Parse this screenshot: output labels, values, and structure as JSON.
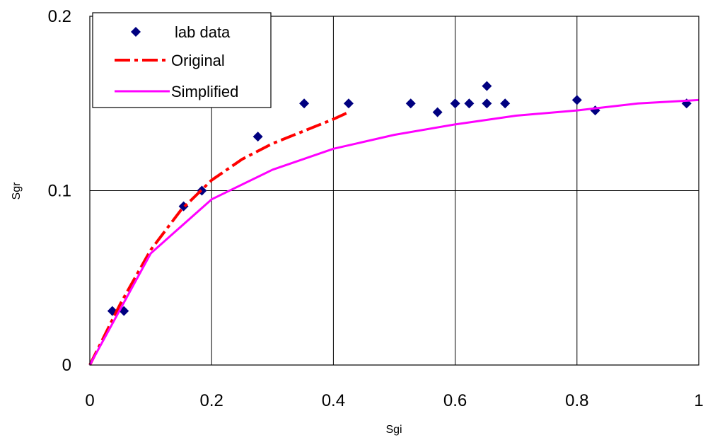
{
  "chart_data": {
    "type": "scatter",
    "title": "",
    "xlabel": "Sgi",
    "ylabel": "Sgr",
    "xlim": [
      0,
      1
    ],
    "ylim": [
      0,
      0.2
    ],
    "x_ticks": [
      "0",
      "0.2",
      "0.4",
      "0.6",
      "0.8",
      "1"
    ],
    "y_ticks": [
      "0",
      "0.1",
      "0.2"
    ],
    "grid": true,
    "legend_position": "top-left",
    "series": [
      {
        "name": "lab data",
        "kind": "markers",
        "marker": "diamond",
        "color": "#000080",
        "points": [
          [
            0.037,
            0.031
          ],
          [
            0.056,
            0.031
          ],
          [
            0.154,
            0.091
          ],
          [
            0.184,
            0.1
          ],
          [
            0.276,
            0.131
          ],
          [
            0.352,
            0.15
          ],
          [
            0.425,
            0.15
          ],
          [
            0.527,
            0.15
          ],
          [
            0.571,
            0.145
          ],
          [
            0.6,
            0.15
          ],
          [
            0.623,
            0.15
          ],
          [
            0.652,
            0.16
          ],
          [
            0.652,
            0.15
          ],
          [
            0.682,
            0.15
          ],
          [
            0.8,
            0.152
          ],
          [
            0.83,
            0.146
          ],
          [
            0.98,
            0.15
          ]
        ]
      },
      {
        "name": "Original",
        "kind": "line",
        "dash": "dash-dot",
        "color": "#ff0000",
        "points": [
          [
            0,
            0
          ],
          [
            0.05,
            0.035
          ],
          [
            0.1,
            0.066
          ],
          [
            0.15,
            0.089
          ],
          [
            0.2,
            0.106
          ],
          [
            0.25,
            0.118
          ],
          [
            0.3,
            0.127
          ],
          [
            0.35,
            0.134
          ],
          [
            0.4,
            0.141
          ],
          [
            0.425,
            0.145
          ]
        ]
      },
      {
        "name": "Simplified",
        "kind": "line",
        "dash": "solid",
        "color": "#ff00ff",
        "points": [
          [
            0,
            0
          ],
          [
            0.1,
            0.064
          ],
          [
            0.2,
            0.095
          ],
          [
            0.3,
            0.112
          ],
          [
            0.4,
            0.124
          ],
          [
            0.5,
            0.132
          ],
          [
            0.6,
            0.138
          ],
          [
            0.7,
            0.143
          ],
          [
            0.8,
            0.146
          ],
          [
            0.9,
            0.15
          ],
          [
            1.0,
            0.152
          ]
        ]
      }
    ]
  }
}
